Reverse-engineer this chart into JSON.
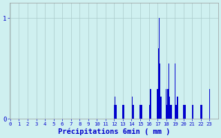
{
  "xlabel": "Précipitations 6min ( mm )",
  "bar_color": "#0000cc",
  "background_color": "#cff0f0",
  "grid_color": "#aacaca",
  "axis_label_color": "#0000cc",
  "ylim": [
    0,
    1.15
  ],
  "yticks": [
    0,
    1
  ],
  "xlim_min": 0,
  "xlim_max": 24,
  "hours": [
    0,
    1,
    2,
    3,
    4,
    5,
    6,
    7,
    8,
    9,
    10,
    11,
    12,
    13,
    14,
    15,
    16,
    17,
    18,
    19,
    20,
    21,
    22,
    23
  ],
  "bar_positions": [
    120,
    121,
    122,
    130,
    131,
    141,
    142,
    150,
    151,
    152,
    161,
    162,
    170,
    171,
    172,
    173,
    174,
    180,
    181,
    182,
    183,
    184,
    185,
    186,
    190,
    191,
    192,
    193,
    200,
    201,
    202,
    210,
    211,
    220,
    221,
    230
  ],
  "bar_heights": [
    0.14,
    0.22,
    0.14,
    0.14,
    0.14,
    0.22,
    0.14,
    0.14,
    0.14,
    0.14,
    0.14,
    0.3,
    0.3,
    0.7,
    1.0,
    0.55,
    0.22,
    0.3,
    0.14,
    0.3,
    0.55,
    0.22,
    0.14,
    0.14,
    0.55,
    0.14,
    0.14,
    0.22,
    0.14,
    0.14,
    0.14,
    0.14,
    0.14,
    0.14,
    0.14,
    0.3
  ]
}
